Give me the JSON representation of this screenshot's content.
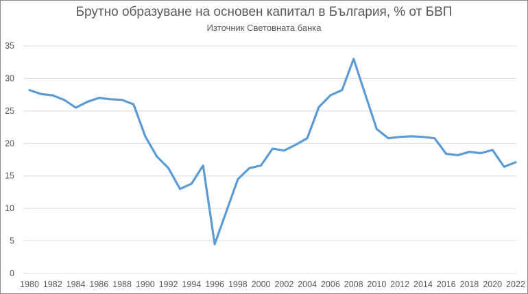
{
  "chart_data": {
    "type": "line",
    "title": "Брутно образуване на основен капитал в България, % от БВП",
    "subtitle": "Източник Световната банка",
    "xlabel": "",
    "ylabel": "",
    "ylim": [
      0,
      35
    ],
    "yticks": [
      0,
      5,
      10,
      15,
      20,
      25,
      30,
      35
    ],
    "xticks": [
      1980,
      1982,
      1984,
      1986,
      1988,
      1990,
      1992,
      1994,
      1996,
      1998,
      2000,
      2002,
      2004,
      2006,
      2008,
      2010,
      2012,
      2014,
      2016,
      2018,
      2020,
      2022
    ],
    "grid": "horizontal",
    "legend": "none",
    "line_color": "#5b9bd5",
    "x": [
      1980,
      1981,
      1982,
      1983,
      1984,
      1985,
      1986,
      1987,
      1988,
      1989,
      1990,
      1991,
      1992,
      1993,
      1994,
      1995,
      1996,
      1997,
      1998,
      1999,
      2000,
      2001,
      2002,
      2003,
      2004,
      2005,
      2006,
      2007,
      2008,
      2009,
      2010,
      2011,
      2012,
      2013,
      2014,
      2015,
      2016,
      2017,
      2018,
      2019,
      2020,
      2021,
      2022
    ],
    "series": [
      {
        "values": [
          28.2,
          27.6,
          27.4,
          26.7,
          25.5,
          26.4,
          27.0,
          26.8,
          26.7,
          26.0,
          21.1,
          18.0,
          16.2,
          13.0,
          13.8,
          16.6,
          4.5,
          9.5,
          14.5,
          16.2,
          16.6,
          19.2,
          18.9,
          19.8,
          20.8,
          25.6,
          27.4,
          28.2,
          33.0,
          27.6,
          22.2,
          20.8,
          21.0,
          21.1,
          21.0,
          20.8,
          18.4,
          18.2,
          18.7,
          18.5,
          19.0,
          16.4,
          17.1
        ]
      }
    ]
  }
}
